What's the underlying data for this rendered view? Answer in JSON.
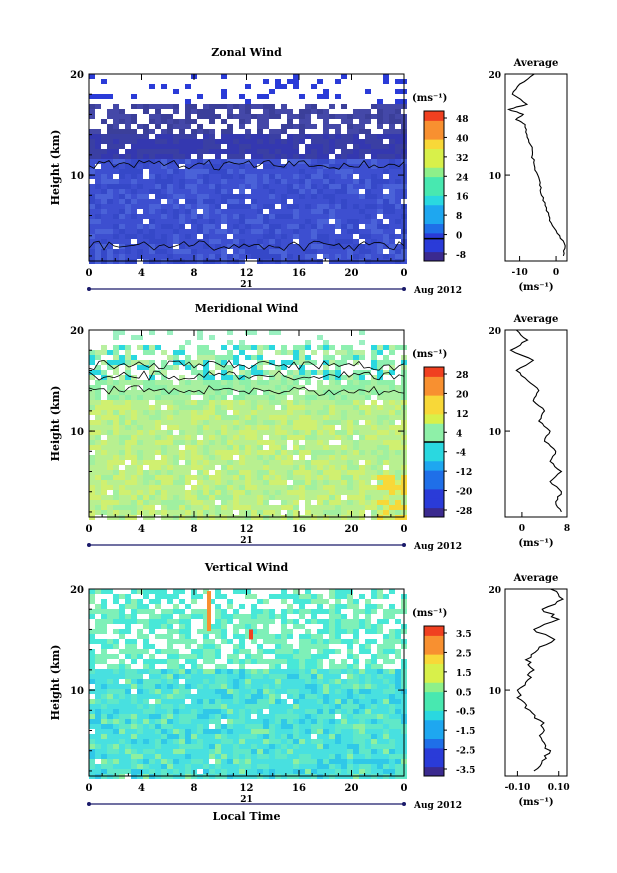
{
  "panels": [
    {
      "title": "Zonal Wind",
      "ylabel": "Height (km)",
      "y_ticks": [
        "20",
        "10"
      ],
      "x_ticks": [
        "0",
        "4",
        "8",
        "12",
        "16",
        "20",
        "0"
      ],
      "day_label": "21",
      "date_label": "Aug 2012",
      "unit_label": "(ms⁻¹)",
      "colorbar_ticks": [
        "48",
        "40",
        "32",
        "24",
        "16",
        "8",
        "0",
        "-8"
      ],
      "avg_title": "Average",
      "avg_y_ticks": [
        "20",
        "10"
      ],
      "avg_x_ticks": [
        "-10",
        "0"
      ],
      "avg_unit": "(ms⁻¹)"
    },
    {
      "title": "Meridional Wind",
      "ylabel": "Height (km)",
      "y_ticks": [
        "20",
        "10"
      ],
      "x_ticks": [
        "0",
        "4",
        "8",
        "12",
        "16",
        "20",
        "0"
      ],
      "day_label": "21",
      "date_label": "Aug 2012",
      "unit_label": "(ms⁻¹)",
      "colorbar_ticks": [
        "28",
        "20",
        "12",
        "4",
        "-4",
        "-12",
        "-20",
        "-28"
      ],
      "avg_title": "Average",
      "avg_y_ticks": [
        "20",
        "10"
      ],
      "avg_x_ticks": [
        "0",
        "8"
      ],
      "avg_unit": "(ms⁻¹)"
    },
    {
      "title": "Vertical Wind",
      "ylabel": "Height (km)",
      "y_ticks": [
        "20",
        "10"
      ],
      "x_ticks": [
        "0",
        "4",
        "8",
        "12",
        "16",
        "20",
        "0"
      ],
      "day_label": "21",
      "date_label": "Aug 2012",
      "unit_label": "(ms⁻¹)",
      "colorbar_ticks": [
        "3.5",
        "2.5",
        "1.5",
        "0.5",
        "-0.5",
        "-1.5",
        "-2.5",
        "-3.5"
      ],
      "avg_title": "Average",
      "avg_y_ticks": [
        "20",
        "10"
      ],
      "avg_x_ticks": [
        "-0.10",
        "0.10"
      ],
      "avg_unit": "(ms⁻¹)",
      "xlabel": "Local Time"
    }
  ],
  "chart_data": [
    {
      "type": "heatmap",
      "title": "Zonal Wind",
      "x_range_hours": [
        0,
        24
      ],
      "y_range_km": [
        1.5,
        20
      ],
      "colorbar_range": [
        -12,
        52
      ],
      "colorbar_ticks": [
        48,
        40,
        32,
        24,
        16,
        8,
        0,
        -8
      ],
      "contour_level": 0,
      "description_values": {
        "typical_lower_troposphere": 0,
        "typical_upper": -6
      }
    },
    {
      "type": "line",
      "title": "Average",
      "x_range": [
        -14,
        3
      ],
      "y_range_km": [
        1.5,
        20
      ],
      "profile": [
        [
          2,
          2
        ],
        [
          2.5,
          3
        ],
        [
          1,
          4
        ],
        [
          -1,
          5
        ],
        [
          -2,
          6
        ],
        [
          -3,
          7
        ],
        [
          -4,
          8
        ],
        [
          -4.5,
          9
        ],
        [
          -5,
          10
        ],
        [
          -6,
          11
        ],
        [
          -6.5,
          12
        ],
        [
          -7,
          13
        ],
        [
          -8,
          14
        ],
        [
          -8.5,
          15
        ],
        [
          -11,
          15.5
        ],
        [
          -9,
          16
        ],
        [
          -13,
          16.5
        ],
        [
          -8,
          17
        ],
        [
          -12,
          18
        ],
        [
          -10,
          19
        ],
        [
          -6,
          20
        ]
      ]
    },
    {
      "type": "heatmap",
      "title": "Meridional Wind",
      "x_range_hours": [
        0,
        24
      ],
      "y_range_km": [
        1.5,
        20
      ],
      "colorbar_range": [
        -32,
        32
      ],
      "colorbar_ticks": [
        28,
        20,
        12,
        4,
        -4,
        -12,
        -20,
        -28
      ],
      "contour_level": 0
    },
    {
      "type": "line",
      "title": "Average",
      "x_range": [
        -3,
        8
      ],
      "y_range_km": [
        1.5,
        20
      ],
      "profile": [
        [
          7,
          2
        ],
        [
          6,
          3
        ],
        [
          7,
          4
        ],
        [
          5,
          5
        ],
        [
          7,
          6
        ],
        [
          5,
          7
        ],
        [
          6,
          8
        ],
        [
          4,
          9
        ],
        [
          5,
          10
        ],
        [
          3,
          11
        ],
        [
          4,
          12
        ],
        [
          2,
          13
        ],
        [
          3,
          14
        ],
        [
          1,
          15
        ],
        [
          -1,
          16
        ],
        [
          2,
          17
        ],
        [
          -2,
          18
        ],
        [
          1,
          19
        ],
        [
          -1,
          20
        ]
      ]
    },
    {
      "type": "heatmap",
      "title": "Vertical Wind",
      "x_range_hours": [
        0,
        24
      ],
      "y_range_km": [
        1.5,
        20
      ],
      "colorbar_range": [
        -4,
        4
      ],
      "colorbar_ticks": [
        3.5,
        2.5,
        1.5,
        0.5,
        -0.5,
        -1.5,
        -2.5,
        -3.5
      ]
    },
    {
      "type": "line",
      "title": "Average",
      "x_range": [
        -0.16,
        0.14
      ],
      "y_range_km": [
        1.5,
        20
      ],
      "profile": [
        [
          -0.02,
          2
        ],
        [
          0.02,
          3
        ],
        [
          0.06,
          4
        ],
        [
          0.02,
          5
        ],
        [
          0.03,
          6
        ],
        [
          0.01,
          7
        ],
        [
          -0.04,
          8
        ],
        [
          -0.08,
          9
        ],
        [
          -0.1,
          10
        ],
        [
          -0.05,
          11
        ],
        [
          -0.02,
          12
        ],
        [
          -0.06,
          13
        ],
        [
          0.0,
          14
        ],
        [
          0.08,
          15
        ],
        [
          -0.02,
          16
        ],
        [
          0.1,
          17
        ],
        [
          0.02,
          18
        ],
        [
          0.12,
          19
        ],
        [
          0.06,
          20
        ]
      ]
    }
  ],
  "colors": {
    "zonal_scale": [
      "#3b2a8f",
      "#2a3bd8",
      "#1f6fe8",
      "#1ea7f0",
      "#2ad8e0",
      "#48e8b0",
      "#8ef08a",
      "#d8f04a",
      "#f8d838",
      "#f89030",
      "#f04020"
    ],
    "meridional_scale": [
      "#3b2a8f",
      "#2a3bd8",
      "#1f6fe8",
      "#1ea7f0",
      "#2ad8e0",
      "#8ef0a8",
      "#d8f04a",
      "#f8d838",
      "#f89030",
      "#f04020"
    ],
    "vertical_scale": [
      "#3b2a8f",
      "#2a3bd8",
      "#1f6fe8",
      "#1ea7f0",
      "#2ad8e0",
      "#48e8b0",
      "#8ef08a",
      "#d8f04a",
      "#f8d838",
      "#f89030",
      "#f04020"
    ]
  }
}
